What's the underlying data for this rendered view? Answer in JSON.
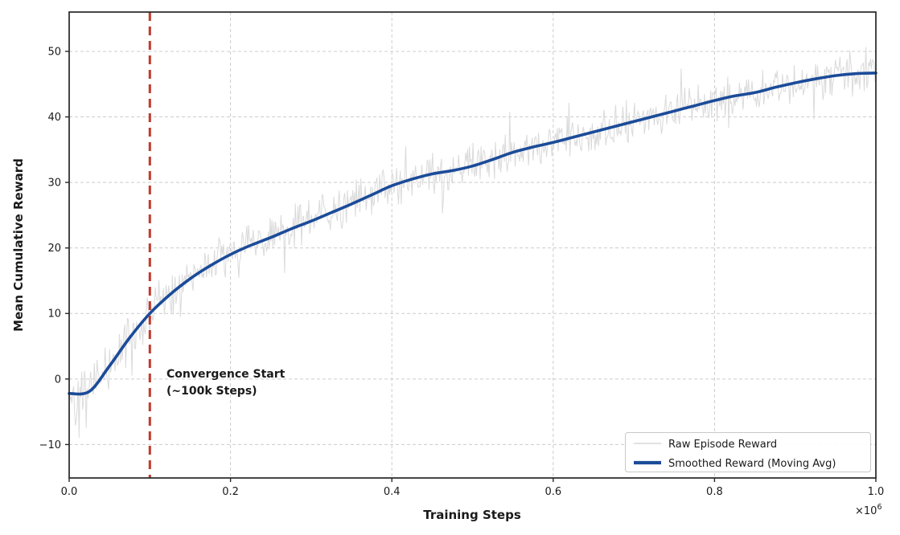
{
  "chart_data": {
    "type": "line",
    "title": "",
    "xlabel": "Training Steps",
    "ylabel": "Mean Cumulative Reward",
    "x_scale_offset": {
      "base": "×10",
      "exponent": "6"
    },
    "x_ticks": {
      "values": [
        0.0,
        0.2,
        0.4,
        0.6,
        0.8,
        1.0
      ],
      "labels": [
        "0.0",
        "0.2",
        "0.4",
        "0.6",
        "0.8",
        "1.0"
      ]
    },
    "y_ticks": {
      "values": [
        -10,
        0,
        10,
        20,
        30,
        40,
        50
      ],
      "labels": [
        "−10",
        "0",
        "10",
        "20",
        "30",
        "40",
        "50"
      ]
    },
    "xlim": [
      0.0,
      1.0
    ],
    "ylim": [
      -15.1,
      56.0
    ],
    "grid": {
      "visible": true,
      "color": "#cccccc",
      "dash": "4 3"
    },
    "vline": {
      "x": 0.1,
      "color": "#c03a2b",
      "width": 3,
      "dash": "11 7"
    },
    "annotation": {
      "lines": [
        "Convergence Start",
        "(~100k Steps)"
      ],
      "color": "#b03226",
      "anchor_x": 0.12,
      "anchor_y": 0.5
    },
    "series": [
      {
        "name": "Raw Episode Reward",
        "type": "raw_noisy",
        "color": "#d8d8d8",
        "line_width": 1,
        "points": 900,
        "noise_amplitude": 2.3,
        "noise_seed": 42
      },
      {
        "name": "Smoothed Reward (Moving Avg)",
        "type": "smoothed",
        "color": "#1b4b99",
        "line_width": 3.6,
        "x": [
          0.0,
          0.025,
          0.05,
          0.075,
          0.1,
          0.125,
          0.15,
          0.175,
          0.2,
          0.225,
          0.25,
          0.275,
          0.3,
          0.325,
          0.35,
          0.375,
          0.4,
          0.425,
          0.45,
          0.475,
          0.5,
          0.525,
          0.55,
          0.575,
          0.6,
          0.625,
          0.65,
          0.675,
          0.7,
          0.725,
          0.75,
          0.775,
          0.8,
          0.825,
          0.85,
          0.875,
          0.9,
          0.925,
          0.95,
          0.975,
          1.0
        ],
        "y": [
          -2.2,
          -1.9,
          2.0,
          6.3,
          10.0,
          12.9,
          15.3,
          17.3,
          19.0,
          20.4,
          21.6,
          22.9,
          24.1,
          25.4,
          26.7,
          28.1,
          29.5,
          30.5,
          31.3,
          31.8,
          32.5,
          33.5,
          34.6,
          35.4,
          36.1,
          36.9,
          37.7,
          38.5,
          39.3,
          40.1,
          40.9,
          41.7,
          42.5,
          43.2,
          43.7,
          44.5,
          45.2,
          45.8,
          46.3,
          46.6,
          46.7
        ]
      }
    ],
    "legend": {
      "position": "lower right"
    }
  }
}
